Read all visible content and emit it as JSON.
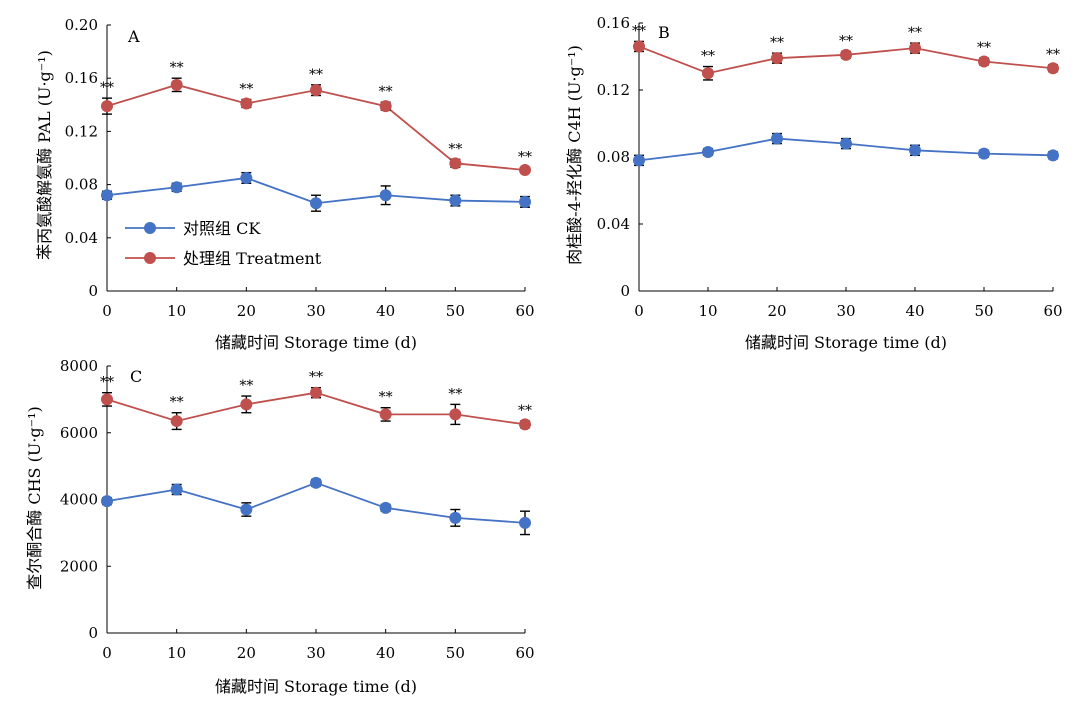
{
  "colors": {
    "ck": "#4472C4",
    "treatment": "#C0504D",
    "axis": "#000000"
  },
  "legend": {
    "ck_label": "对照组 CK",
    "treatment_label": "处理组 Treatment"
  },
  "chart_data": [
    {
      "type": "line",
      "panel": "A",
      "xlabel": "储藏时间 Storage time (d)",
      "ylabel": "苯丙氨酸解氨酶 PAL (U·g⁻¹)",
      "x": [
        0,
        10,
        20,
        30,
        40,
        50,
        60
      ],
      "xticks": [
        "0",
        "10",
        "20",
        "30",
        "40",
        "50",
        "60"
      ],
      "xlim": [
        0,
        60
      ],
      "ylim": [
        0,
        0.2
      ],
      "yticks": [
        "0",
        "0.04",
        "0.08",
        "0.12",
        "0.16",
        "0.20"
      ],
      "grid": false,
      "legend_position": "center-left",
      "series": [
        {
          "name": "对照组 CK",
          "key": "ck",
          "values": [
            0.072,
            0.078,
            0.085,
            0.066,
            0.072,
            0.068,
            0.067
          ],
          "errors": [
            0.003,
            0.003,
            0.004,
            0.006,
            0.007,
            0.004,
            0.004
          ]
        },
        {
          "name": "处理组 Treatment",
          "key": "treatment",
          "values": [
            0.139,
            0.155,
            0.141,
            0.151,
            0.139,
            0.096,
            0.091
          ],
          "errors": [
            0.006,
            0.005,
            0.003,
            0.004,
            0.003,
            0.003,
            0.002
          ]
        }
      ],
      "annotations": [
        "**",
        "**",
        "**",
        "**",
        "**",
        "**",
        "**"
      ]
    },
    {
      "type": "line",
      "panel": "B",
      "xlabel": "储藏时间 Storage time (d)",
      "ylabel": "肉桂酸-4-羟化酶 C4H (U·g⁻¹)",
      "x": [
        0,
        10,
        20,
        30,
        40,
        50,
        60
      ],
      "xticks": [
        "0",
        "10",
        "20",
        "30",
        "40",
        "50",
        "60"
      ],
      "xlim": [
        0,
        60
      ],
      "ylim": [
        0,
        0.16
      ],
      "yticks": [
        "0",
        "0.04",
        "0.08",
        "0.12",
        "0.16"
      ],
      "grid": false,
      "series": [
        {
          "name": "对照组 CK",
          "key": "ck",
          "values": [
            0.078,
            0.083,
            0.091,
            0.088,
            0.084,
            0.082,
            0.081
          ],
          "errors": [
            0.003,
            0.002,
            0.003,
            0.003,
            0.003,
            0.002,
            0.002
          ]
        },
        {
          "name": "处理组 Treatment",
          "key": "treatment",
          "values": [
            0.146,
            0.13,
            0.139,
            0.141,
            0.145,
            0.137,
            0.133
          ],
          "errors": [
            0.003,
            0.004,
            0.003,
            0.002,
            0.003,
            0.002,
            0.002
          ]
        }
      ],
      "annotations": [
        "**",
        "**",
        "**",
        "**",
        "**",
        "**",
        "**"
      ]
    },
    {
      "type": "line",
      "panel": "C",
      "xlabel": "储藏时间 Storage time (d)",
      "ylabel": "查尔酮合酶 CHS (U·g⁻¹)",
      "x": [
        0,
        10,
        20,
        30,
        40,
        50,
        60
      ],
      "xticks": [
        "0",
        "10",
        "20",
        "30",
        "40",
        "50",
        "60"
      ],
      "xlim": [
        0,
        60
      ],
      "ylim": [
        0,
        8000
      ],
      "yticks": [
        "0",
        "2000",
        "4000",
        "6000",
        "8000"
      ],
      "grid": false,
      "series": [
        {
          "name": "对照组 CK",
          "key": "ck",
          "values": [
            3950,
            4300,
            3700,
            4500,
            3750,
            3450,
            3300
          ],
          "errors": [
            100,
            150,
            200,
            100,
            100,
            250,
            350
          ]
        },
        {
          "name": "处理组 Treatment",
          "key": "treatment",
          "values": [
            7000,
            6350,
            6850,
            7200,
            6550,
            6550,
            6250
          ],
          "errors": [
            200,
            250,
            250,
            150,
            200,
            300,
            100
          ]
        }
      ],
      "annotations": [
        "**",
        "**",
        "**",
        "**",
        "**",
        "**",
        "**"
      ]
    }
  ]
}
